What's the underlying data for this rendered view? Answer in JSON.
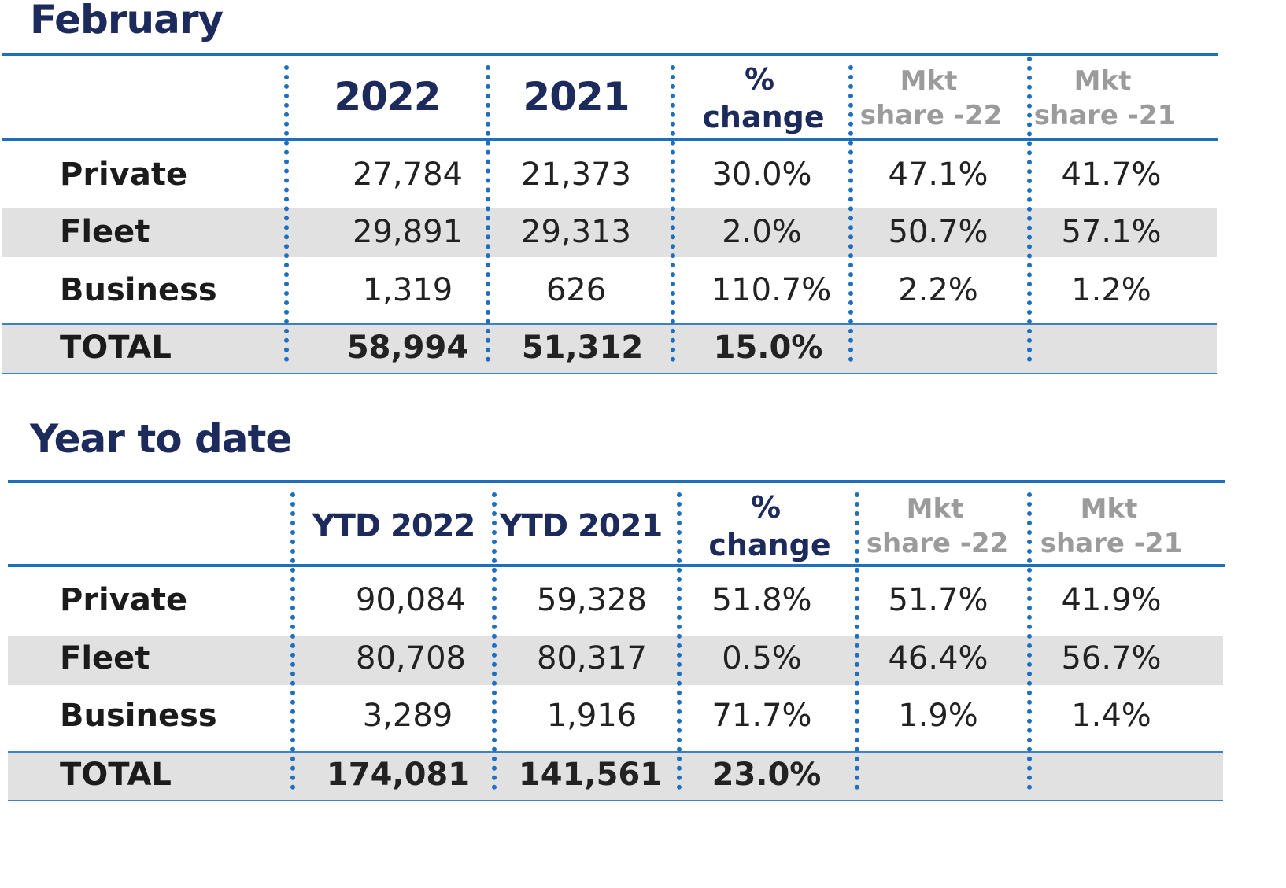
{
  "sections": [
    {
      "title": "February",
      "headers": {
        "col1": "2022",
        "col2": "2021",
        "pct_line1": "%",
        "pct_line2": "change",
        "mkt22_line1": "Mkt",
        "mkt22_line2": "share -22",
        "mkt21_line1": "Mkt",
        "mkt21_line2": "share -21"
      },
      "rows": [
        {
          "label": "Private",
          "v1": "27,784",
          "v2": "21,373",
          "pct": "30.0%",
          "m22": "47.1%",
          "m21": "41.7%"
        },
        {
          "label": "Fleet",
          "v1": "29,891",
          "v2": "29,313",
          "pct": "2.0%",
          "m22": "50.7%",
          "m21": "57.1%"
        },
        {
          "label": "Business",
          "v1": "1,319",
          "v2": "626",
          "pct": "110.7%",
          "m22": "2.2%",
          "m21": "1.2%"
        }
      ],
      "total": {
        "label": "TOTAL",
        "v1": "58,994",
        "v2": "51,312",
        "pct": "15.0%"
      }
    },
    {
      "title": "Year to date",
      "headers": {
        "col1": "YTD 2022",
        "col2": "YTD 2021",
        "pct_line1": "%",
        "pct_line2": "change",
        "mkt22_line1": "Mkt",
        "mkt22_line2": "share -22",
        "mkt21_line1": "Mkt",
        "mkt21_line2": "share -21"
      },
      "rows": [
        {
          "label": "Private",
          "v1": "90,084",
          "v2": "59,328",
          "pct": "51.8%",
          "m22": "51.7%",
          "m21": "41.9%"
        },
        {
          "label": "Fleet",
          "v1": "80,708",
          "v2": "80,317",
          "pct": "0.5%",
          "m22": "46.4%",
          "m21": "56.7%"
        },
        {
          "label": "Business",
          "v1": "3,289",
          "v2": "1,916",
          "pct": "71.7%",
          "m22": "1.9%",
          "m21": "1.4%"
        }
      ],
      "total": {
        "label": "TOTAL",
        "v1": "174,081",
        "v2": "141,561",
        "pct": "23.0%"
      }
    }
  ]
}
